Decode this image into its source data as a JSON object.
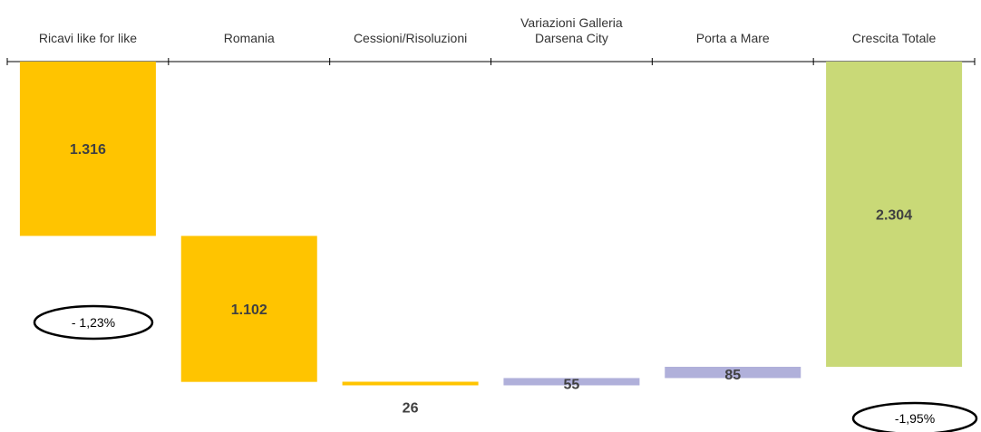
{
  "chart_data": {
    "type": "bar",
    "subtype": "waterfall",
    "categories": [
      [
        "Ricavi like for like"
      ],
      [
        "Romania"
      ],
      [
        "Cessioni/Risoluzioni"
      ],
      [
        "Variazioni Galleria",
        "Darsena City"
      ],
      [
        "Porta a Mare"
      ],
      [
        "Crescita Totale"
      ]
    ],
    "values": [
      1316,
      1102,
      26,
      55,
      85,
      2304
    ],
    "value_labels": [
      "1.316",
      "1.102",
      "26",
      "55",
      "85",
      "2.304"
    ],
    "bar_kind": [
      "decrease",
      "decrease",
      "decrease",
      "increase",
      "increase",
      "total"
    ],
    "ylim": [
      0,
      2304
    ],
    "annotations": [
      {
        "text": "- 1,23%",
        "near": "Ricavi like for like"
      },
      {
        "text": "-1,95%",
        "near": "Crescita Totale"
      }
    ],
    "colors": {
      "decrease": "#FFC400",
      "increase": "#B0B0DA",
      "total": "#C9D977",
      "axis": "#000000"
    }
  }
}
